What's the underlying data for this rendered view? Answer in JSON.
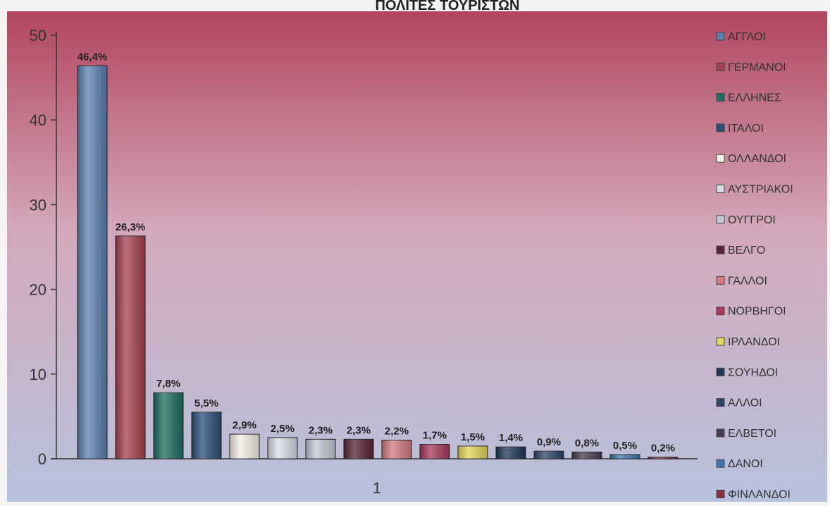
{
  "chart_data": {
    "type": "bar",
    "title": "ΠΟΛΙΤΕΣ ΤΟΥΡΙΣΤΩΝ",
    "xlabel": "",
    "ylabel": "",
    "categories": [
      "1"
    ],
    "ylim": [
      0,
      50
    ],
    "yticks": [
      0,
      10,
      20,
      30,
      40,
      50
    ],
    "legend_position": "right",
    "grid": false,
    "series": [
      {
        "name": "ΑΓΓΛΟΙ",
        "values": [
          46.4
        ],
        "label": "46,4%",
        "color": "#5b7fae"
      },
      {
        "name": "ΓΕΡΜΑΝΟΙ",
        "values": [
          26.3
        ],
        "label": "26,3%",
        "color": "#a5414f"
      },
      {
        "name": "ΕΛΛΗΝΕΣ",
        "values": [
          7.8
        ],
        "label": "7,8%",
        "color": "#1f6e62"
      },
      {
        "name": "ΙΤΑΛΟΙ",
        "values": [
          5.5
        ],
        "label": "5,5%",
        "color": "#2b4f78"
      },
      {
        "name": "ΟΛΛΑΝΔΟΙ",
        "values": [
          2.9
        ],
        "label": "2,9%",
        "color": "#f4f1e6"
      },
      {
        "name": "ΑΥΣΤΡΙΑΚΟΙ",
        "values": [
          2.5
        ],
        "label": "2,5%",
        "color": "#d8dde8"
      },
      {
        "name": "ΟΥΓΓΡΟΙ",
        "values": [
          2.3
        ],
        "label": "2,3%",
        "color": "#c2c8d6"
      },
      {
        "name": "ΒΕΛΓΟ",
        "values": [
          2.3
        ],
        "label": "2,3%",
        "color": "#5a2236"
      },
      {
        "name": "ΓΑΛΛΟΙ",
        "values": [
          2.2
        ],
        "label": "2,2%",
        "color": "#d47a80"
      },
      {
        "name": "ΝΟΡΒΗΓΟΙ",
        "values": [
          1.7
        ],
        "label": "1,7%",
        "color": "#a8385a"
      },
      {
        "name": "ΙΡΛΑΝΔΟΙ",
        "values": [
          1.5
        ],
        "label": "1,5%",
        "color": "#e3d65a"
      },
      {
        "name": "ΣΟΥΗΔΟΙ",
        "values": [
          1.4
        ],
        "label": "1,4%",
        "color": "#1f3559"
      },
      {
        "name": "ΑΛΛΟΙ",
        "values": [
          0.9
        ],
        "label": "0,9%",
        "color": "#2d4569"
      },
      {
        "name": "ΕΛΒΕΤΟΙ",
        "values": [
          0.8
        ],
        "label": "0,8%",
        "color": "#4b3c54"
      },
      {
        "name": "ΔΑΝΟΙ",
        "values": [
          0.5
        ],
        "label": "0,5%",
        "color": "#3f76b0"
      },
      {
        "name": "ΦΙΝΛΑΝΔΟΙ",
        "values": [
          0.2
        ],
        "label": "0,2%",
        "color": "#8a3146"
      }
    ]
  }
}
